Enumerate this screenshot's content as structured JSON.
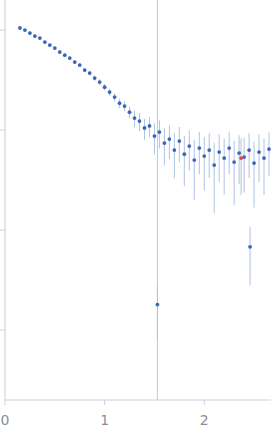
{
  "chart_data": {
    "type": "scatter",
    "xlim": [
      0,
      2.67
    ],
    "xticks": [
      0,
      1,
      2
    ],
    "ylim": [
      0.0002,
      2
    ],
    "yticks": [
      0.001,
      0.01,
      0.1,
      1
    ],
    "log": "y",
    "grid": false,
    "tick_labels": "x",
    "vline": 1.53,
    "series": [
      {
        "color": "#3a66b8",
        "marker": "circle",
        "x": [
          0.15,
          0.2,
          0.25,
          0.3,
          0.35,
          0.4,
          0.45,
          0.5,
          0.55,
          0.6,
          0.65,
          0.7,
          0.75,
          0.8,
          0.85,
          0.9,
          0.95,
          1.0,
          1.05,
          1.1,
          1.15,
          1.2,
          1.25,
          1.3,
          1.35,
          1.4,
          1.45,
          1.5,
          1.55,
          1.6,
          1.65,
          1.7,
          1.75,
          1.8,
          1.85,
          1.9,
          1.95,
          2.0,
          2.05,
          2.1,
          2.15,
          2.2,
          2.25,
          2.3,
          2.35,
          2.4,
          2.45,
          2.5,
          2.55,
          2.6,
          2.65
        ],
        "values": [
          1.05,
          1.0,
          0.933,
          0.871,
          0.832,
          0.759,
          0.708,
          0.661,
          0.603,
          0.562,
          0.525,
          0.479,
          0.447,
          0.398,
          0.372,
          0.331,
          0.302,
          0.269,
          0.24,
          0.214,
          0.186,
          0.174,
          0.151,
          0.132,
          0.123,
          0.105,
          0.11,
          0.0871,
          0.0955,
          0.0741,
          0.0813,
          0.0631,
          0.0776,
          0.0575,
          0.0692,
          0.0501,
          0.0661,
          0.055,
          0.0631,
          0.0447,
          0.0603,
          0.0525,
          0.0661,
          0.0479,
          0.0589,
          0.0537,
          0.0631,
          0.0468,
          0.0603,
          0.0525,
          0.0646
        ],
        "errors": [
          0.03,
          0.03,
          0.03,
          0.03,
          0.03,
          0.02,
          0.02,
          0.02,
          0.02,
          0.02,
          0.02,
          0.02,
          0.02,
          0.02,
          0.02,
          0.02,
          0.02,
          0.02,
          0.02,
          0.02,
          0.02,
          0.02,
          0.02,
          0.025,
          0.025,
          0.025,
          0.025,
          0.03,
          0.03,
          0.03,
          0.03,
          0.03,
          0.03,
          0.03,
          0.03,
          0.03,
          0.03,
          0.03,
          0.03,
          0.03,
          0.03,
          0.03,
          0.03,
          0.03,
          0.03,
          0.03,
          0.03,
          0.03,
          0.03,
          0.03,
          0.03
        ]
      },
      {
        "color": "#3a66b8",
        "marker": "circle",
        "x": [
          1.53,
          2.46
        ],
        "values": [
          0.0018,
          0.0068
        ],
        "errors": [
          0.001,
          0.004
        ]
      },
      {
        "color": "#e0453a",
        "marker": "circle",
        "x": [
          2.37
        ],
        "values": [
          0.0525
        ],
        "errors": [
          0.03
        ]
      }
    ]
  }
}
